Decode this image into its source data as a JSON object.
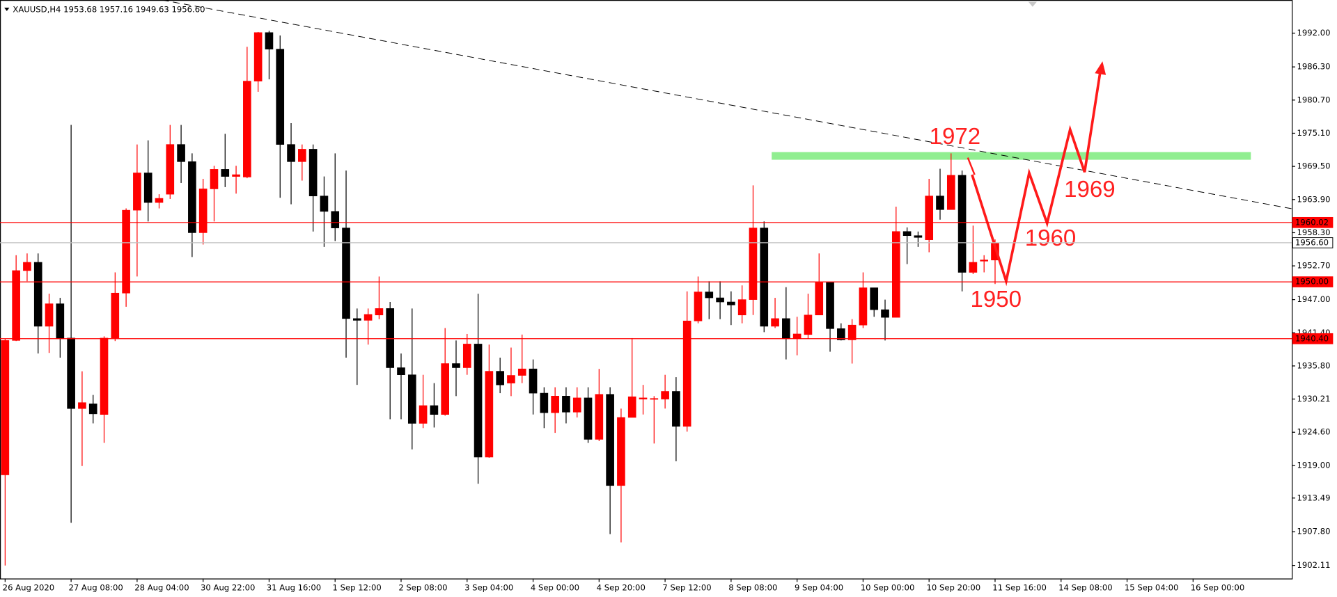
{
  "chart_data": {
    "type": "candlestick",
    "title": "XAUUSD,H4  1953.68 1957.16 1949.63 1956.60",
    "categories": [
      "26 Aug 2020",
      null,
      null,
      null,
      null,
      null,
      "27 Aug 08:00",
      null,
      null,
      null,
      null,
      null,
      "28 Aug 04:00",
      null,
      null,
      null,
      null,
      null,
      "30 Aug 22:00",
      null,
      null,
      null,
      null,
      null,
      "31 Aug 16:00",
      null,
      null,
      null,
      null,
      null,
      "1 Sep 12:00",
      null,
      null,
      null,
      null,
      null,
      "2 Sep 08:00",
      null,
      null,
      null,
      null,
      null,
      "3 Sep 04:00",
      null,
      null,
      null,
      null,
      null,
      "4 Sep 00:00",
      null,
      null,
      null,
      null,
      null,
      "4 Sep 20:00",
      null,
      null,
      null,
      null,
      null,
      "7 Sep 12:00",
      null,
      null,
      null,
      null,
      null,
      "8 Sep 08:00",
      null,
      null,
      null,
      null,
      null,
      "9 Sep 04:00",
      null,
      null,
      null,
      null,
      null,
      "10 Sep 00:00",
      null,
      null,
      null,
      null,
      null,
      "10 Sep 20:00",
      null,
      null,
      null,
      null,
      null,
      "11 Sep 16:00",
      null,
      null,
      null,
      null,
      null,
      "14 Sep 08:00",
      null,
      null,
      null,
      null,
      null,
      "15 Sep 04:00",
      null,
      null,
      null,
      null,
      null,
      "16 Sep 00:00",
      null,
      null,
      null,
      null,
      null,
      null,
      null,
      null
    ],
    "open": [
      1917.4,
      1940.1,
      1951.9,
      1953.3,
      1942.5,
      1946.3,
      1940.5,
      1928.6,
      1929.4,
      1927.6,
      1940.5,
      1948.1,
      1962.1,
      1968.4,
      1963.4,
      1964.8,
      1973.2,
      1970.3,
      1958.3,
      1965.7,
      1969.0,
      1967.8,
      1967.7,
      1983.9,
      1992.1,
      1989.3,
      1973.2,
      1970.3,
      1972.4,
      1964.5,
      1961.9,
      1959.1,
      1943.8,
      1943.5,
      1944.4,
      1945.5,
      1935.5,
      1934.3,
      1926.1,
      1929.1,
      1927.6,
      1936.2,
      1935.5,
      1939.5,
      1920.4,
      1934.9,
      1932.9,
      1934.2,
      1935.3,
      1931.2,
      1927.9,
      1930.7,
      1928.0,
      1930.4,
      1923.4,
      1931.0,
      1915.6,
      1927.1,
      1930.2,
      1930.2,
      1930.2,
      1931.5,
      1925.6,
      1943.4,
      1948.3,
      1947.3,
      1946.6,
      1944.4,
      1947.0,
      1959.1,
      1942.5,
      1943.8,
      1940.4,
      1941.1,
      1944.4,
      1949.9,
      1942.1,
      1940.2,
      1942.7,
      1949.0,
      1945.3,
      1944.0,
      1958.5,
      1957.8,
      1957.1,
      1964.5,
      1962.2,
      1968.0,
      1951.6,
      1953.5,
      1953.68,
      null,
      null,
      null,
      null,
      null,
      null,
      null,
      null,
      null,
      null,
      null,
      null,
      null,
      null,
      null,
      null,
      null,
      null,
      null,
      null,
      null,
      null,
      null,
      null,
      null,
      null
    ],
    "high": [
      1940.4,
      1954.5,
      1954.8,
      1954.8,
      1948.0,
      1947.3,
      1976.5,
      1934.9,
      1930.9,
      1940.8,
      1951.6,
      1962.4,
      1973.2,
      1973.9,
      1964.8,
      1976.5,
      1976.5,
      1971.7,
      1967.4,
      1969.6,
      1975.0,
      1969.6,
      1989.7,
      1992.2,
      1992.4,
      1991.6,
      1976.8,
      1973.2,
      1973.2,
      1967.8,
      1971.7,
      1968.8,
      1945.5,
      1945.5,
      1950.9,
      1946.6,
      1937.9,
      1945.5,
      1934.3,
      1932.9,
      1942.2,
      1940.1,
      1941.2,
      1948.0,
      1939.4,
      1937.2,
      1938.9,
      1941.1,
      1936.9,
      1932.2,
      1932.2,
      1932.2,
      1932.2,
      1932.2,
      1935.3,
      1932.2,
      1928.6,
      1940.5,
      1932.6,
      1930.7,
      1934.3,
      1933.9,
      1948.4,
      1950.9,
      1950.1,
      1950.1,
      1948.4,
      1949.4,
      1966.3,
      1960.2,
      1947.3,
      1949.1,
      1944.1,
      1948.0,
      1954.8,
      1949.9,
      1943.0,
      1943.7,
      1951.6,
      1949.0,
      1947.0,
      1962.7,
      1959.2,
      1958.5,
      1967.4,
      1969.1,
      1971.7,
      1968.8,
      1959.5,
      1954.5,
      1957.16,
      null,
      null,
      null,
      null,
      null,
      null,
      null,
      null,
      null,
      null,
      null,
      null,
      null,
      null,
      null,
      null,
      null,
      null,
      null,
      null,
      null,
      null,
      null,
      null,
      null,
      null
    ],
    "low": [
      1902.1,
      1940.0,
      1950.1,
      1937.9,
      1938.0,
      1937.2,
      1909.3,
      1918.9,
      1926.1,
      1922.8,
      1940.0,
      1945.8,
      1950.9,
      1960.2,
      1962.4,
      1964.0,
      1966.7,
      1954.2,
      1956.3,
      1960.2,
      1966.0,
      1964.9,
      1967.5,
      1982.1,
      1984.2,
      1964.2,
      1963.1,
      1967.1,
      1958.5,
      1955.9,
      1956.9,
      1937.2,
      1932.6,
      1939.4,
      1943.7,
      1926.8,
      1926.8,
      1921.7,
      1925.3,
      1925.4,
      1927.4,
      1930.7,
      1934.3,
      1915.9,
      1920.3,
      1931.2,
      1930.7,
      1932.9,
      1927.6,
      1925.3,
      1924.5,
      1926.1,
      1927.1,
      1922.8,
      1923.1,
      1907.4,
      1906.0,
      1927.1,
      1927.6,
      1922.7,
      1928.6,
      1919.7,
      1924.7,
      1943.0,
      1943.7,
      1943.7,
      1942.7,
      1943.0,
      1944.4,
      1941.5,
      1942.2,
      1936.9,
      1937.6,
      1940.4,
      1944.4,
      1938.2,
      1940.1,
      1936.2,
      1942.2,
      1944.1,
      1940.1,
      1944.0,
      1953.0,
      1955.9,
      1955.0,
      1960.5,
      1962.2,
      1948.4,
      1951.3,
      1951.6,
      1949.63,
      null,
      null,
      null,
      null,
      null,
      null,
      null,
      null,
      null,
      null,
      null,
      null,
      null,
      null,
      null,
      null,
      null,
      null,
      null,
      null,
      null,
      null,
      null,
      null,
      null,
      null
    ],
    "close": [
      1940.1,
      1951.9,
      1953.3,
      1942.5,
      1946.3,
      1940.4,
      1928.6,
      1929.6,
      1927.7,
      1940.5,
      1948.1,
      1962.1,
      1968.4,
      1963.4,
      1964.1,
      1973.2,
      1970.3,
      1958.3,
      1965.7,
      1969.0,
      1967.8,
      1968.1,
      1983.9,
      1992.1,
      1989.3,
      1973.2,
      1970.3,
      1972.4,
      1964.5,
      1961.9,
      1959.1,
      1943.8,
      1943.5,
      1944.5,
      1945.5,
      1935.5,
      1934.3,
      1926.1,
      1929.1,
      1927.6,
      1936.2,
      1935.5,
      1939.5,
      1920.4,
      1934.9,
      1932.6,
      1934.2,
      1935.3,
      1931.2,
      1927.9,
      1930.7,
      1928.0,
      1930.4,
      1923.4,
      1931.0,
      1915.6,
      1927.1,
      1930.6,
      1930.4,
      1930.3,
      1931.5,
      1925.6,
      1943.4,
      1948.3,
      1947.3,
      1946.6,
      1946.1,
      1947.0,
      1959.1,
      1942.5,
      1943.8,
      1940.4,
      1941.2,
      1944.4,
      1949.9,
      1942.1,
      1940.2,
      1942.7,
      1949.0,
      1945.3,
      1944.0,
      1958.5,
      1957.8,
      1957.5,
      1964.5,
      1962.2,
      1968.0,
      1951.6,
      1953.3,
      1953.7,
      1956.6,
      null,
      null,
      null,
      null,
      null,
      null,
      null,
      null,
      null,
      null,
      null,
      null,
      null,
      null,
      null,
      null,
      null,
      null,
      null,
      null,
      null,
      null,
      null,
      null,
      null,
      null
    ],
    "up_color": "#ff0000",
    "down_color": "#000000",
    "ylim": [
      1899.9,
      1997.6
    ],
    "yticks": [
      {
        "value": 1902.11,
        "label": "1902.11"
      },
      {
        "value": 1907.8,
        "label": "1907.80"
      },
      {
        "value": 1913.49,
        "label": "1913.49"
      },
      {
        "value": 1919,
        "label": "1919.00"
      },
      {
        "value": 1924.6,
        "label": "1924.60"
      },
      {
        "value": 1930.21,
        "label": "1930.21"
      },
      {
        "value": 1935.8,
        "label": "1935.80"
      },
      {
        "value": 1941.4,
        "label": "1941.40"
      },
      {
        "value": 1947,
        "label": "1947.00"
      },
      {
        "value": 1952.7,
        "label": "1952.70"
      },
      {
        "value": 1958.3,
        "label": "1958.30"
      },
      {
        "value": 1963.9,
        "label": "1963.90"
      },
      {
        "value": 1969.5,
        "label": "1969.50"
      },
      {
        "value": 1975.1,
        "label": "1975.10"
      },
      {
        "value": 1980.7,
        "label": "1980.70"
      },
      {
        "value": 1986.3,
        "label": "1986.30"
      },
      {
        "value": 1992,
        "label": "1992.00"
      }
    ],
    "grid": false,
    "levels": [
      {
        "value": 1960.02,
        "label": "1960.02",
        "color": "#ff0000"
      },
      {
        "value": 1950,
        "label": "1950.00",
        "color": "#ff0000"
      },
      {
        "value": 1940.4,
        "label": "1940.40",
        "color": "#ff0000"
      },
      {
        "value": 1956.6,
        "label": "1956.60",
        "color": "#c0c0c0"
      }
    ],
    "annotations": [
      "1972",
      "1969",
      "1960",
      "1950"
    ]
  }
}
